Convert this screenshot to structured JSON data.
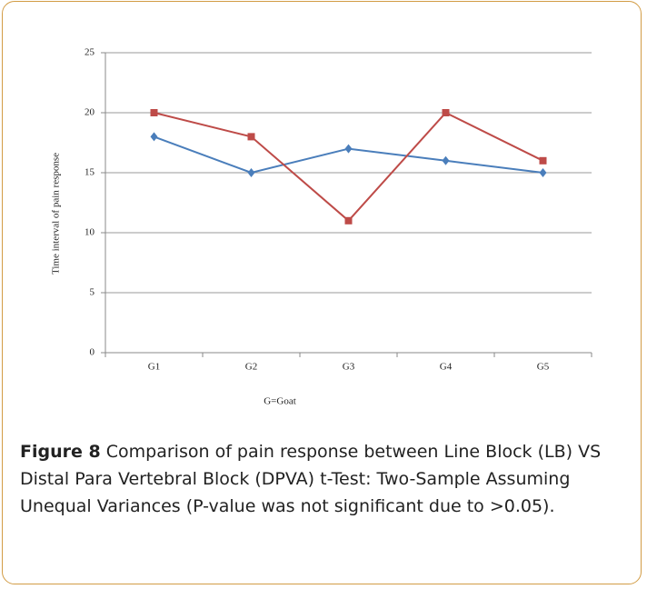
{
  "chart_data": {
    "type": "line",
    "ylabel": "Time interval of pain response",
    "xlabel": "G=Goat",
    "categories": [
      "G1",
      "G2",
      "G3",
      "G4",
      "G5"
    ],
    "series": [
      {
        "color": "#4a7ebb",
        "marker": "diamond",
        "values": [
          18,
          15,
          17,
          16,
          15
        ]
      },
      {
        "color": "#be4b48",
        "marker": "square",
        "values": [
          20,
          18,
          11,
          20,
          16
        ]
      }
    ],
    "ylim": [
      0,
      25
    ],
    "yticks": [
      0,
      5,
      10,
      15,
      20,
      25
    ],
    "grid": true
  },
  "caption": {
    "label": "Figure 8",
    "text": "Comparison of pain response between Line Block (LB) VS Distal Para Vertebral Block (DPVA) t-Test: Two-Sample Assuming Unequal Variances (P-value was not significant due to >0.05)."
  }
}
